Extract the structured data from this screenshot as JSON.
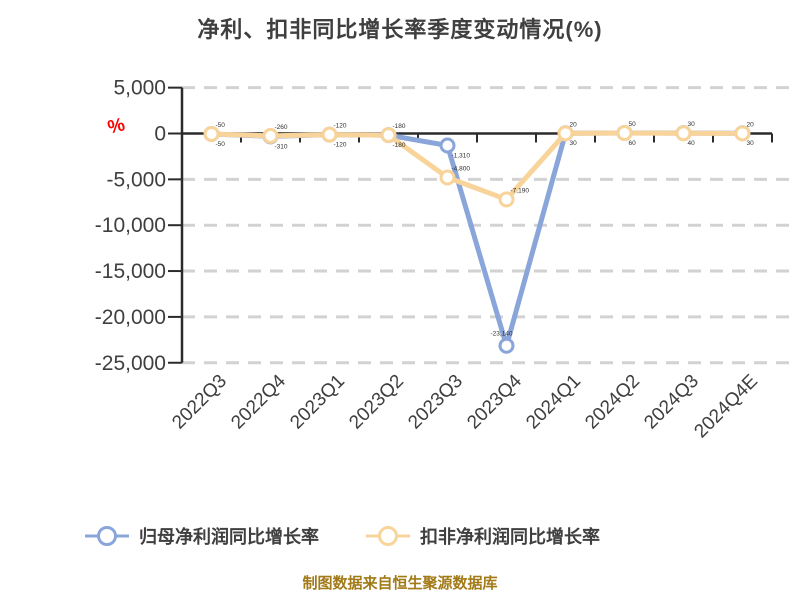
{
  "title": "净利、扣非同比增长率季度变动情况(%)",
  "y_axis": {
    "unit_label": "%",
    "unit_color": "#ff0000",
    "ticks": [
      5000,
      0,
      -5000,
      -10000,
      -15000,
      -20000,
      -25000
    ],
    "tick_labels": [
      "5,000",
      "0",
      "-5,000",
      "-10,000",
      "-15,000",
      "-20,000",
      "-25,000"
    ]
  },
  "chart_data": {
    "type": "line",
    "categories": [
      "2022Q3",
      "2022Q4",
      "2023Q1",
      "2023Q2",
      "2023Q3",
      "2023Q4",
      "2024Q1",
      "2024Q2",
      "2024Q3",
      "2024Q4E"
    ],
    "series": [
      {
        "name": "归母净利润同比增长率",
        "color": "#8aa5da",
        "values": [
          -50,
          -310,
          -120,
          -180,
          -1310,
          -23140,
          30,
          60,
          40,
          30
        ]
      },
      {
        "name": "扣非净利润同比增长率",
        "color": "#f8d49a",
        "values": [
          -50,
          -260,
          -120,
          -180,
          -4800,
          -7190,
          20,
          50,
          30,
          20
        ]
      }
    ],
    "title": "净利、扣非同比增长率季度变动情况(%)",
    "xlabel": "",
    "ylabel": "%",
    "ylim": [
      -25000,
      5000
    ],
    "grid": "horizontal-dashed",
    "legend_position": "bottom",
    "marker": "circle-white-fill",
    "point_labels_visible": true
  },
  "legend": {
    "items": [
      {
        "label": "归母净利润同比增长率",
        "color": "#8aa5da"
      },
      {
        "label": "扣非净利润同比增长率",
        "color": "#f8d49a"
      }
    ]
  },
  "caption": {
    "text": "制图数据来自恒生聚源数据库",
    "color": "#a27a18"
  },
  "style_colors": {
    "axis": "#2b2b2b",
    "grid": "#d2d2d2",
    "tick_text": "#3f3f3f",
    "data_label_text": "#2e2e2e"
  }
}
